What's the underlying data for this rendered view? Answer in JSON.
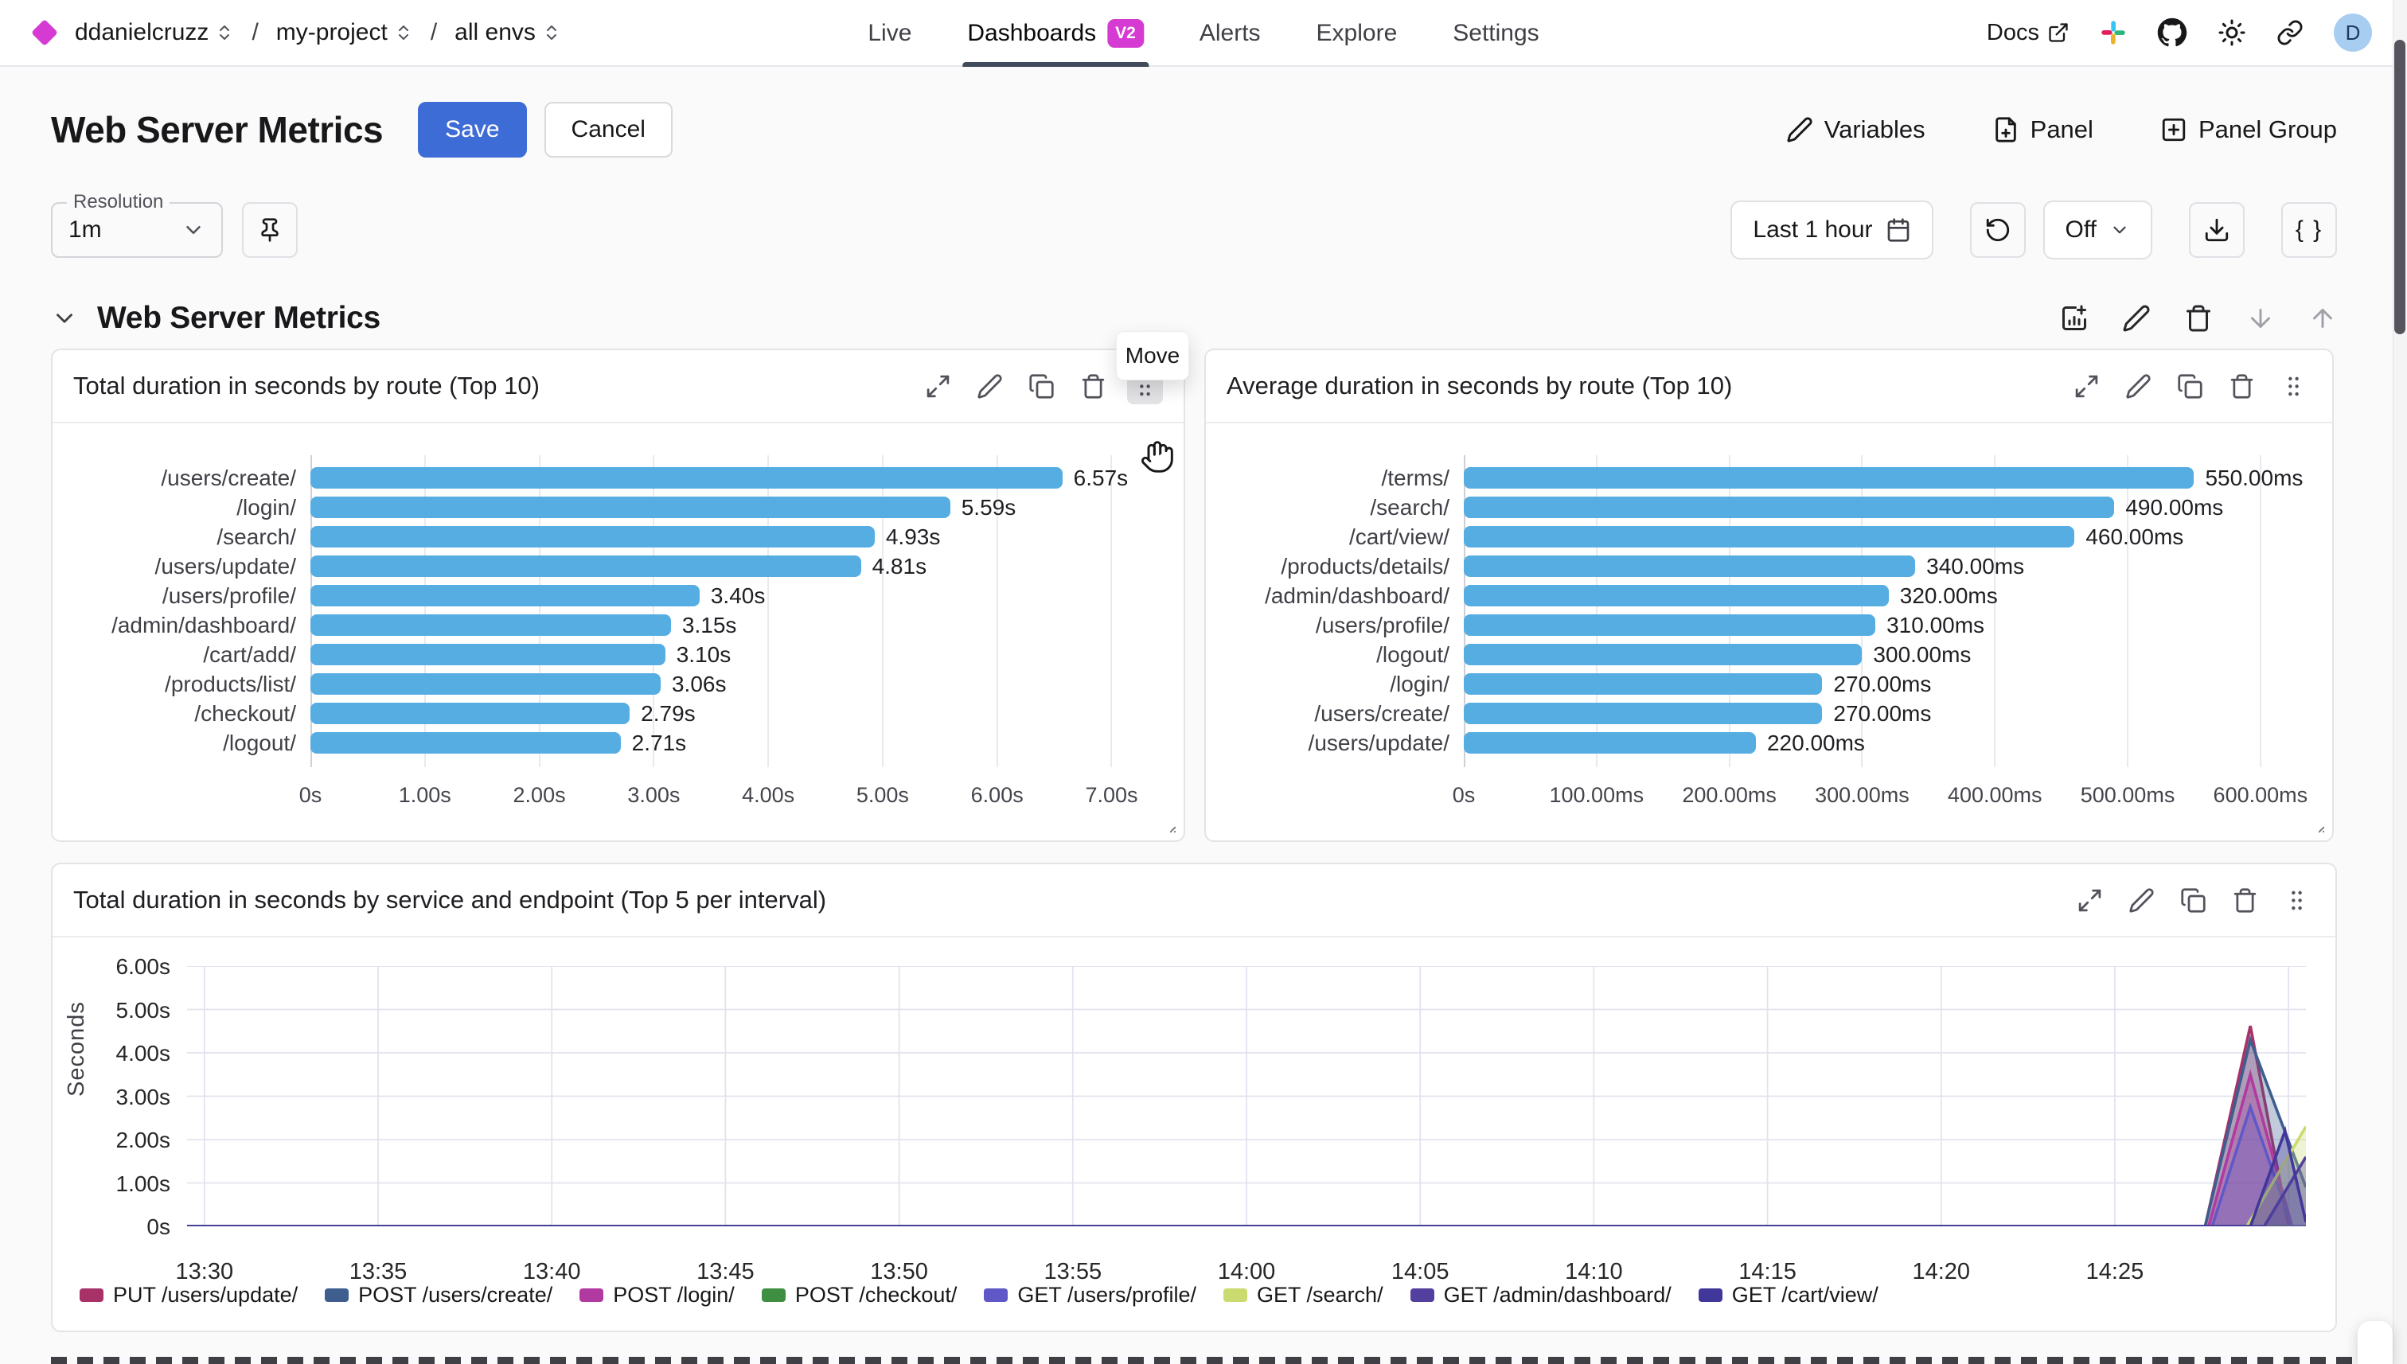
{
  "header": {
    "breadcrumb": {
      "org": "ddanielcruzz",
      "project": "my-project",
      "env": "all envs",
      "separator": "/"
    },
    "nav": [
      {
        "label": "Live"
      },
      {
        "label": "Dashboards",
        "badge": "V2",
        "active": true
      },
      {
        "label": "Alerts"
      },
      {
        "label": "Explore"
      },
      {
        "label": "Settings"
      }
    ],
    "docs_label": "Docs",
    "avatar_letter": "D",
    "right_icons": [
      "external-link-icon",
      "slack-icon",
      "github-icon",
      "theme-sun-icon",
      "link-icon",
      "avatar"
    ]
  },
  "toolbar": {
    "page_title": "Web Server Metrics",
    "save_label": "Save",
    "cancel_label": "Cancel",
    "variables_label": "Variables",
    "panel_label": "Panel",
    "panel_group_label": "Panel Group"
  },
  "controls": {
    "resolution_label": "Resolution",
    "resolution_value": "1m",
    "time_range_label": "Last 1 hour",
    "refresh_value": "Off",
    "braces_label": "{ }"
  },
  "section": {
    "title": "Web Server Metrics",
    "tooltip": "Move",
    "action_icons": [
      "add-chart-icon",
      "edit-icon",
      "delete-icon",
      "move-down-icon",
      "move-up-icon"
    ]
  },
  "panel_action_icons": [
    "expand-icon",
    "edit-icon",
    "duplicate-icon",
    "delete-icon",
    "drag-handle-icon"
  ],
  "accent_colors": {
    "brand_magenta": "#d53ad2",
    "primary_blue": "#3e6cd6",
    "bar_blue": "#55ade2"
  },
  "chart_data": [
    {
      "type": "bar",
      "orientation": "horizontal",
      "title": "Total duration in seconds by route (Top 10)",
      "categories": [
        "/users/create/",
        "/login/",
        "/search/",
        "/users/update/",
        "/users/profile/",
        "/admin/dashboard/",
        "/cart/add/",
        "/products/list/",
        "/checkout/",
        "/logout/"
      ],
      "values": [
        6.57,
        5.59,
        4.93,
        4.81,
        3.4,
        3.15,
        3.1,
        3.06,
        2.79,
        2.71
      ],
      "value_labels": [
        "6.57s",
        "5.59s",
        "4.93s",
        "4.81s",
        "3.40s",
        "3.15s",
        "3.10s",
        "3.06s",
        "2.79s",
        "2.71s"
      ],
      "x_ticks": [
        "0s",
        "1.00s",
        "2.00s",
        "3.00s",
        "4.00s",
        "5.00s",
        "6.00s",
        "7.00s"
      ],
      "xlim": [
        0,
        7
      ],
      "bar_color": "#55ade2",
      "grid": true
    },
    {
      "type": "bar",
      "orientation": "horizontal",
      "title": "Average duration in seconds by route (Top 10)",
      "categories": [
        "/terms/",
        "/search/",
        "/cart/view/",
        "/products/details/",
        "/admin/dashboard/",
        "/users/profile/",
        "/logout/",
        "/login/",
        "/users/create/",
        "/users/update/"
      ],
      "values": [
        550,
        490,
        460,
        340,
        320,
        310,
        300,
        270,
        270,
        220
      ],
      "value_labels": [
        "550.00ms",
        "490.00ms",
        "460.00ms",
        "340.00ms",
        "320.00ms",
        "310.00ms",
        "300.00ms",
        "270.00ms",
        "270.00ms",
        "220.00ms"
      ],
      "x_ticks": [
        "0s",
        "100.00ms",
        "200.00ms",
        "300.00ms",
        "400.00ms",
        "500.00ms",
        "600.00ms"
      ],
      "xlim": [
        0,
        600
      ],
      "bar_color": "#55ade2",
      "grid": true
    },
    {
      "type": "area",
      "title": "Total duration in seconds by service and endpoint (Top 5 per interval)",
      "ylabel": "Seconds",
      "y_ticks": [
        "6.00s",
        "5.00s",
        "4.00s",
        "3.00s",
        "2.00s",
        "1.00s",
        "0s"
      ],
      "ylim": [
        0,
        6
      ],
      "x_ticks": [
        "13:30",
        "13:35",
        "13:40",
        "13:45",
        "13:50",
        "13:55",
        "14:00",
        "14:05",
        "14:10",
        "14:15",
        "14:20",
        "14:25"
      ],
      "x_tick_minutes": [
        0,
        5,
        10,
        15,
        20,
        25,
        30,
        35,
        40,
        45,
        50,
        55,
        60
      ],
      "x_domain_minutes": [
        -0.5,
        60.5
      ],
      "grid": true,
      "legend_position": "bottom",
      "series": [
        {
          "name": "PUT /users/update/",
          "color": "#a83268",
          "points": [
            [
              -0.5,
              0
            ],
            [
              57.6,
              0
            ],
            [
              58.9,
              4.62
            ],
            [
              60.0,
              0
            ],
            [
              60.5,
              0
            ]
          ]
        },
        {
          "name": "POST /users/create/",
          "color": "#3d5e8f",
          "points": [
            [
              -0.5,
              0
            ],
            [
              57.6,
              0
            ],
            [
              58.9,
              4.3
            ],
            [
              60.5,
              0.9
            ]
          ]
        },
        {
          "name": "POST /login/",
          "color": "#b13aa0",
          "points": [
            [
              -0.5,
              0
            ],
            [
              57.7,
              0
            ],
            [
              58.9,
              3.5
            ],
            [
              60.1,
              0
            ],
            [
              60.5,
              0
            ]
          ]
        },
        {
          "name": "POST /checkout/",
          "color": "#3f8f43",
          "points": [
            [
              -0.5,
              0
            ],
            [
              60.5,
              0
            ]
          ]
        },
        {
          "name": "GET /users/profile/",
          "color": "#6158c8",
          "points": [
            [
              -0.5,
              0
            ],
            [
              57.8,
              0
            ],
            [
              58.9,
              2.75
            ],
            [
              60.1,
              0
            ],
            [
              60.5,
              0
            ]
          ]
        },
        {
          "name": "GET /search/",
          "color": "#cbdb70",
          "points": [
            [
              -0.5,
              0
            ],
            [
              58.8,
              0
            ],
            [
              60.5,
              2.3
            ]
          ]
        },
        {
          "name": "GET /admin/dashboard/",
          "color": "#53409e",
          "points": [
            [
              -0.5,
              0
            ],
            [
              59.3,
              0
            ],
            [
              60.5,
              1.6
            ]
          ]
        },
        {
          "name": "GET /cart/view/",
          "color": "#41379b",
          "points": [
            [
              -0.5,
              0
            ],
            [
              58.9,
              0
            ],
            [
              59.9,
              2.2
            ],
            [
              60.5,
              0.1
            ]
          ]
        }
      ]
    }
  ]
}
